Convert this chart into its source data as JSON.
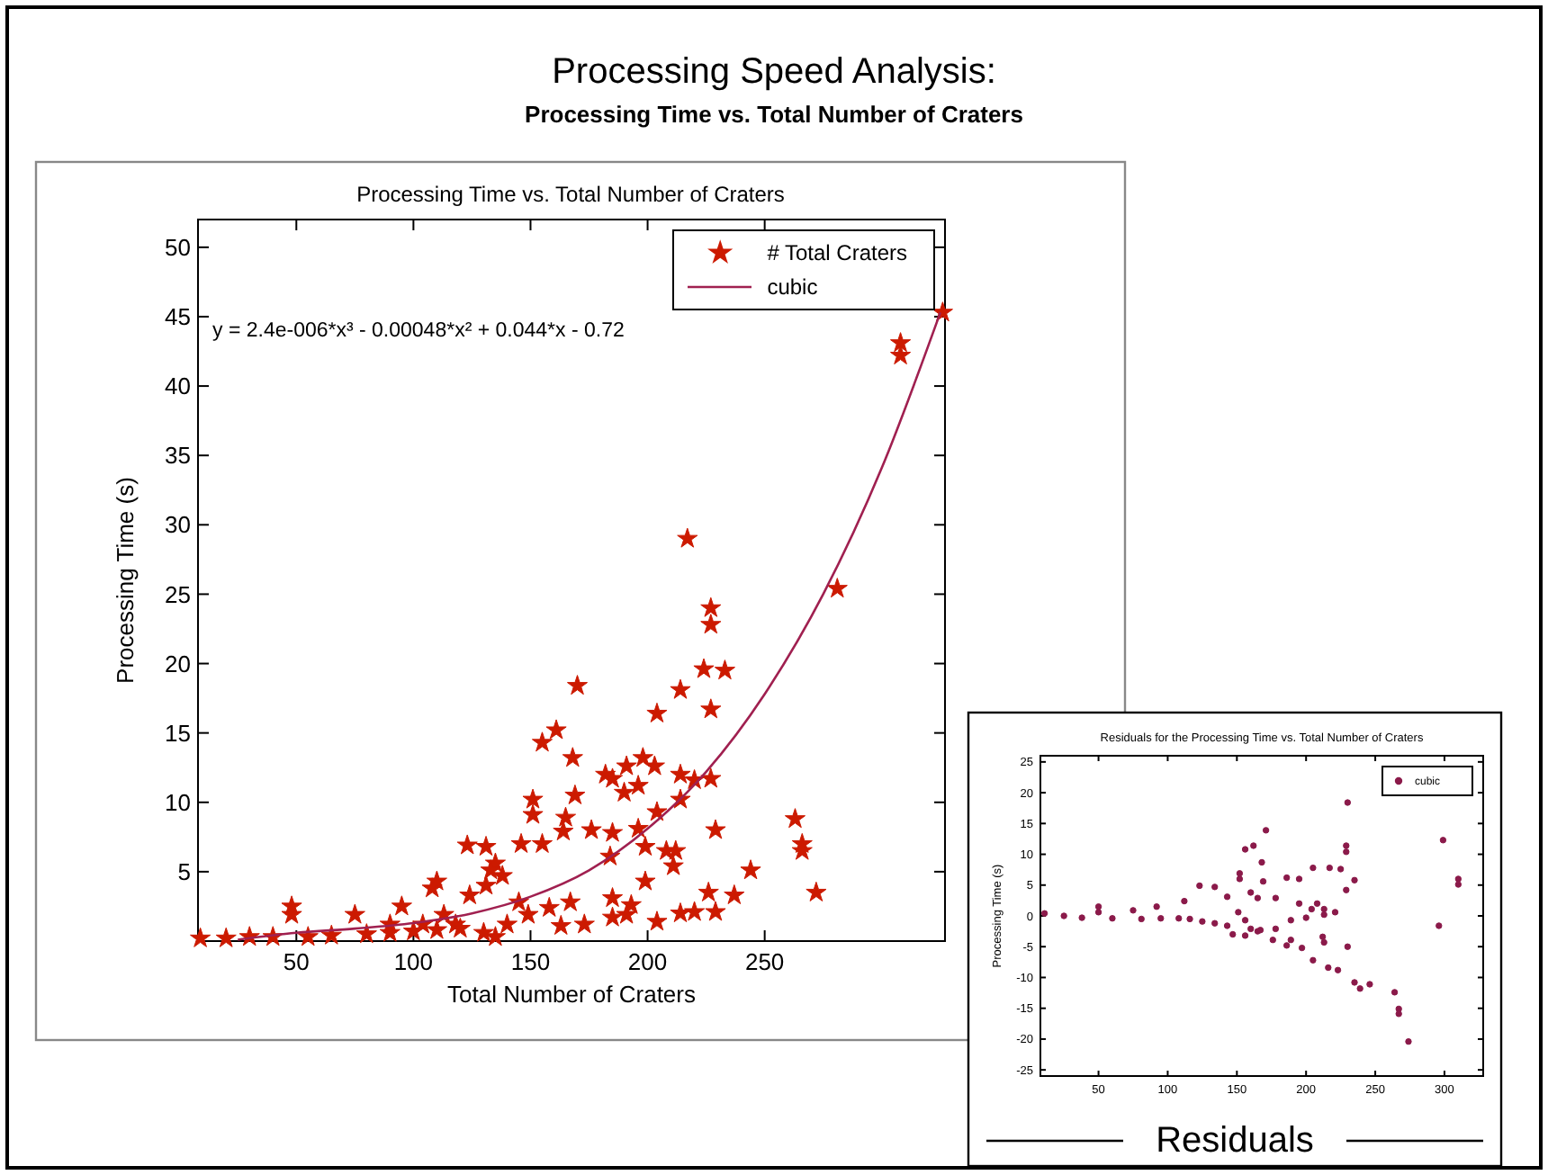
{
  "chart_data": [
    {
      "type": "scatter",
      "title": "Processing Speed Analysis:",
      "subtitle": "Processing Time vs. Total Number of Craters",
      "xlabel": "Total Number of Craters",
      "ylabel": "Processing Time (s)",
      "annotations": [
        "Processing Time vs. Total Number of Craters",
        "y = 2.4e-006*x³ - 0.00048*x² + 0.044*x - 0.72"
      ],
      "xlim": [
        8,
        327
      ],
      "ylim": [
        0,
        52
      ],
      "xticks": [
        50,
        100,
        150,
        200,
        250
      ],
      "yticks": [
        5,
        10,
        15,
        20,
        25,
        30,
        35,
        40,
        45,
        50
      ],
      "legend": "top right",
      "series": [
        {
          "name": "# Total Craters",
          "marker": "star",
          "color": "#cc1a00",
          "x": [
            326,
            308,
            308,
            217,
            281,
            227,
            227,
            224,
            233,
            170,
            214,
            204,
            227,
            161,
            155,
            168,
            198,
            191,
            203,
            182,
            185,
            214,
            220,
            227,
            190,
            196,
            151,
            151,
            169,
            214,
            204,
            263,
            229,
            176,
            165,
            164,
            185,
            196,
            266,
            266,
            123,
            131,
            146,
            155,
            135,
            133,
            199,
            208,
            212,
            211,
            184,
            199,
            244,
            272,
            108,
            110,
            124,
            226,
            237,
            185,
            193,
            48,
            48,
            75,
            95,
            214,
            220,
            229,
            204,
            173,
            185,
            191,
            163,
            145,
            149,
            140,
            158,
            167,
            113,
            118,
            104,
            90,
            131,
            138,
            9,
            20,
            30,
            40,
            55,
            65,
            80,
            90,
            100,
            110,
            120,
            130,
            135
          ],
          "values": [
            45.3,
            43.1,
            42.2,
            29.0,
            25.4,
            24.0,
            22.8,
            19.6,
            19.5,
            18.4,
            18.1,
            16.4,
            16.7,
            15.2,
            14.3,
            13.2,
            13.2,
            12.6,
            12.6,
            12.0,
            11.7,
            12.0,
            11.6,
            11.7,
            10.7,
            11.2,
            10.2,
            9.1,
            10.5,
            10.2,
            9.3,
            8.8,
            8.0,
            8.0,
            8.9,
            7.9,
            7.8,
            8.1,
            7.0,
            6.5,
            6.9,
            6.8,
            7.0,
            7.0,
            5.6,
            5.1,
            6.8,
            6.5,
            6.5,
            5.4,
            6.1,
            4.3,
            5.1,
            3.5,
            3.8,
            4.3,
            3.3,
            3.5,
            3.3,
            3.1,
            2.6,
            2.5,
            1.9,
            1.9,
            2.5,
            2.0,
            2.1,
            2.1,
            1.4,
            1.2,
            1.7,
            1.9,
            1.1,
            2.8,
            1.9,
            1.2,
            2.4,
            2.8,
            1.9,
            1.2,
            1.2,
            1.2,
            4.0,
            4.7,
            0.2,
            0.2,
            0.3,
            0.3,
            0.3,
            0.4,
            0.5,
            0.6,
            0.7,
            0.8,
            0.9,
            0.6,
            0.3
          ]
        },
        {
          "name": "cubic",
          "type": "line",
          "color": "#a02050",
          "x": [
            25,
            50,
            75,
            100,
            125,
            150,
            175,
            200,
            225,
            250,
            275,
            300,
            325
          ],
          "values": [
            0.1,
            0.6,
            0.9,
            1.3,
            2.0,
            3.2,
            5.1,
            8.1,
            12.2,
            17.8,
            25.0,
            34.1,
            45.3
          ]
        }
      ]
    },
    {
      "type": "scatter",
      "title": "Residuals for the Processing Time vs. Total Number of Craters",
      "ylabel": "Processing Time (s)",
      "annotations": [
        "Residuals"
      ],
      "xlim": [
        8,
        328
      ],
      "ylim": [
        -26,
        26
      ],
      "xticks": [
        50,
        100,
        150,
        200,
        250,
        300
      ],
      "yticks": [
        -25,
        -20,
        -15,
        -10,
        -5,
        0,
        5,
        10,
        15,
        20,
        25
      ],
      "legend": "top right",
      "series": [
        {
          "name": "cubic",
          "marker": "circle",
          "color": "#8b1a4a",
          "x": [
            230,
            299,
            310,
            310,
            296,
            264,
            267,
            267,
            274,
            246,
            239,
            235,
            223,
            216,
            205,
            212,
            213,
            230,
            197,
            186,
            189,
            176,
            178,
            205,
            217,
            225,
            229,
            229,
            229,
            235,
            171,
            168,
            162,
            156,
            152,
            152,
            169,
            186,
            195,
            134,
            123,
            143,
            112,
            92,
            75,
            50,
            50,
            160,
            165,
            178,
            195,
            204,
            213,
            221,
            189,
            200,
            151,
            156,
            160,
            165,
            143,
            134,
            125,
            116,
            108,
            11,
            25,
            38,
            60,
            81,
            95,
            147,
            156,
            167,
            208,
            213
          ],
          "values": [
            18.4,
            12.3,
            6.0,
            5.1,
            -1.6,
            -12.4,
            -15.1,
            -15.9,
            -20.4,
            -11.1,
            -11.8,
            -10.8,
            -8.8,
            -8.4,
            -7.2,
            -3.4,
            -4.3,
            -5.0,
            -5.2,
            -4.8,
            -3.9,
            -3.9,
            -2.1,
            7.8,
            7.8,
            7.6,
            11.4,
            10.4,
            4.2,
            5.8,
            13.9,
            8.7,
            11.4,
            10.8,
            6.9,
            6.0,
            5.6,
            6.2,
            6.0,
            4.7,
            4.9,
            3.1,
            2.4,
            1.5,
            0.9,
            1.5,
            0.6,
            3.8,
            2.9,
            2.9,
            2.0,
            1.1,
            0.2,
            0.6,
            -0.7,
            -0.3,
            0.6,
            -0.7,
            -2.1,
            -2.5,
            -1.6,
            -1.2,
            -0.9,
            -0.5,
            -0.4,
            0.4,
            0.0,
            -0.3,
            -0.4,
            -0.5,
            -0.4,
            -3.0,
            -3.2,
            -2.3,
            2.0,
            1.1
          ]
        }
      ]
    }
  ]
}
